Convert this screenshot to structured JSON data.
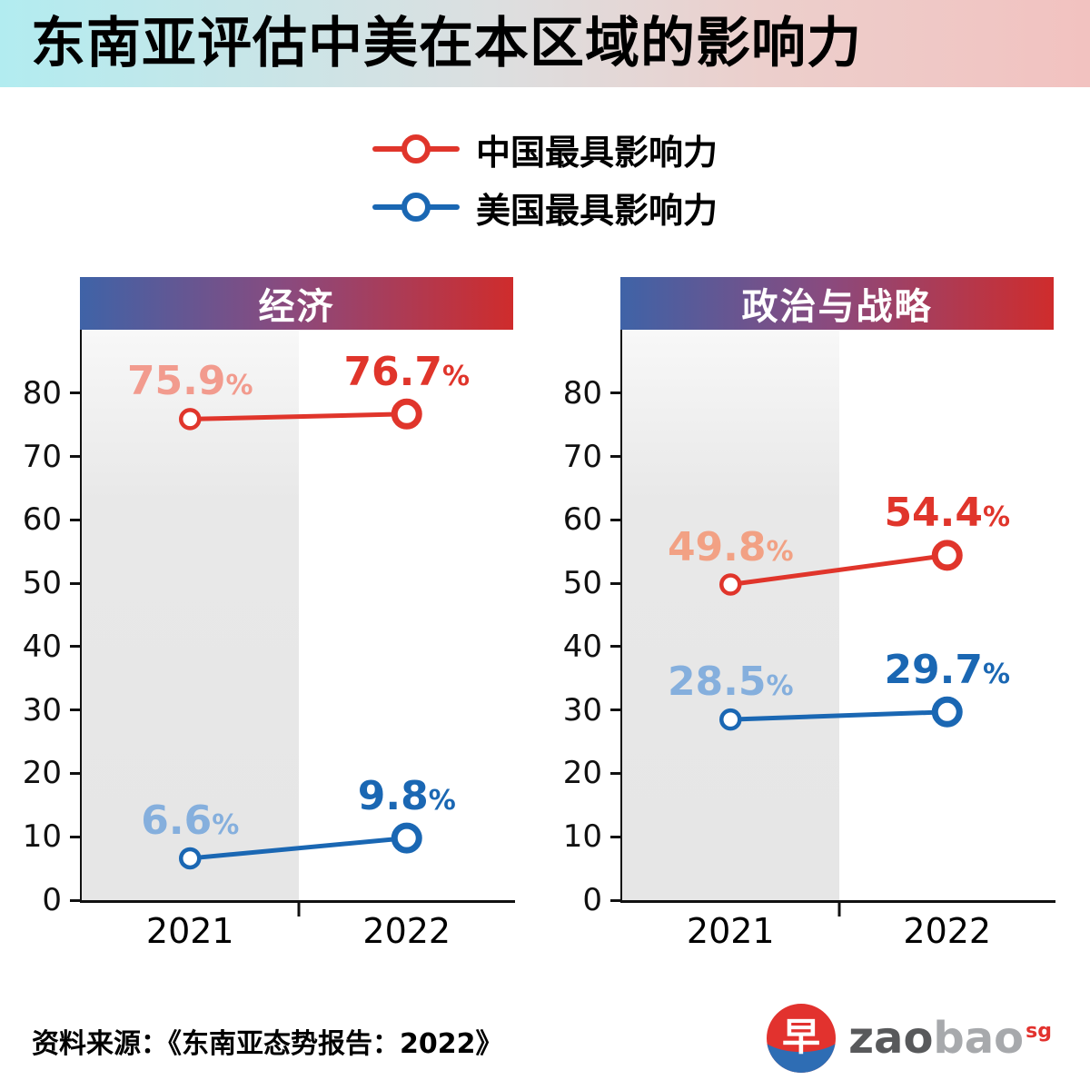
{
  "page": {
    "title": "东南亚评估中美在本区域的影响力",
    "source": "资料来源：《东南亚态势报告：2022》"
  },
  "legend": {
    "items": [
      {
        "label": "中国最具影响力",
        "color": "#e0352b"
      },
      {
        "label": "美国最具影响力",
        "color": "#1a67b3"
      }
    ]
  },
  "logo": {
    "glyph": "早",
    "zao": "zao",
    "bao": "bao",
    "sg": "sg"
  },
  "chart_data": [
    {
      "type": "line",
      "title": "经济",
      "categories": [
        "2021",
        "2022"
      ],
      "series": [
        {
          "name": "中国最具影响力",
          "values": [
            75.9,
            76.7
          ],
          "color": "#e0352b",
          "muted_color": "#f29b8e"
        },
        {
          "name": "美国最具影响力",
          "values": [
            6.6,
            9.8
          ],
          "color": "#1a67b3",
          "muted_color": "#85afdd"
        }
      ],
      "ylim": [
        0,
        90
      ],
      "yticks": [
        0,
        10,
        20,
        30,
        40,
        50,
        60,
        70,
        80
      ],
      "value_suffix": "%",
      "xlabel": "",
      "ylabel": "",
      "grid": false,
      "legend_position": "top"
    },
    {
      "type": "line",
      "title": "政治与战略",
      "categories": [
        "2021",
        "2022"
      ],
      "series": [
        {
          "name": "中国最具影响力",
          "values": [
            49.8,
            54.4
          ],
          "color": "#e0352b",
          "muted_color": "#f2a184"
        },
        {
          "name": "美国最具影响力",
          "values": [
            28.5,
            29.7
          ],
          "color": "#1a67b3",
          "muted_color": "#85afdd"
        }
      ],
      "ylim": [
        0,
        90
      ],
      "yticks": [
        0,
        10,
        20,
        30,
        40,
        50,
        60,
        70,
        80
      ],
      "value_suffix": "%",
      "xlabel": "",
      "ylabel": "",
      "grid": false,
      "legend_position": "top"
    }
  ]
}
